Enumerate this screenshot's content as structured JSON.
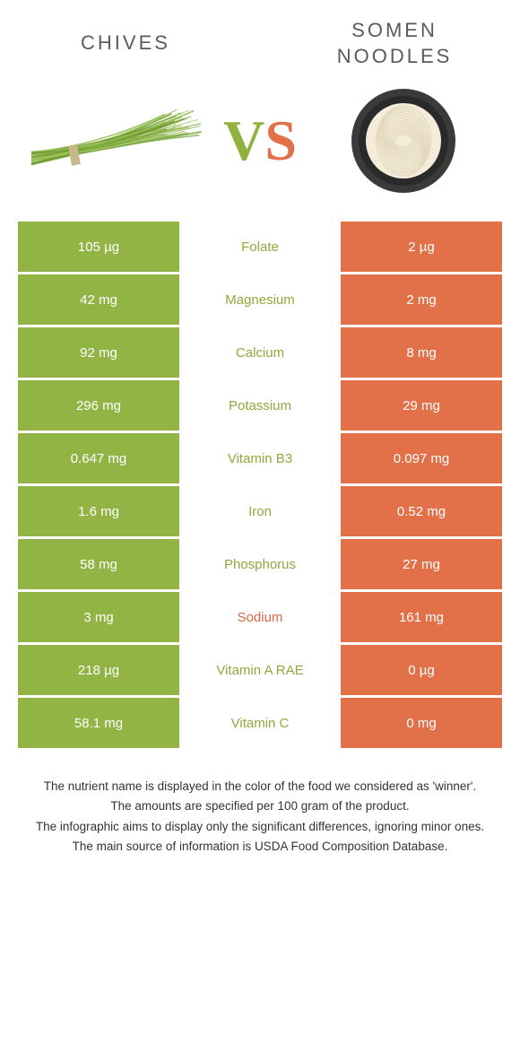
{
  "header": {
    "left_title": "Chives",
    "right_title": "Somen noodles",
    "vs_v": "V",
    "vs_s": "S"
  },
  "colors": {
    "left": "#91b445",
    "right": "#e2714a",
    "nutrient_left": "#8fa83e",
    "nutrient_right": "#d66842",
    "white": "#ffffff"
  },
  "images": {
    "chives": {
      "stroke": "#6d9a2f",
      "stroke_light": "#9ac158",
      "band": "#c9b98a"
    },
    "noodles": {
      "bowl_outer": "#3a3a3a",
      "bowl_inner": "#2a2a2a",
      "noodle": "#f4ecd8",
      "noodle_shadow": "#d8ceb0"
    }
  },
  "rows": [
    {
      "left": "105 µg",
      "nutrient": "Folate",
      "right": "2 µg",
      "winner": "left"
    },
    {
      "left": "42 mg",
      "nutrient": "Magnesium",
      "right": "2 mg",
      "winner": "left"
    },
    {
      "left": "92 mg",
      "nutrient": "Calcium",
      "right": "8 mg",
      "winner": "left"
    },
    {
      "left": "296 mg",
      "nutrient": "Potassium",
      "right": "29 mg",
      "winner": "left"
    },
    {
      "left": "0.647 mg",
      "nutrient": "Vitamin B3",
      "right": "0.097 mg",
      "winner": "left"
    },
    {
      "left": "1.6 mg",
      "nutrient": "Iron",
      "right": "0.52 mg",
      "winner": "left"
    },
    {
      "left": "58 mg",
      "nutrient": "Phosphorus",
      "right": "27 mg",
      "winner": "left"
    },
    {
      "left": "3 mg",
      "nutrient": "Sodium",
      "right": "161 mg",
      "winner": "right"
    },
    {
      "left": "218 µg",
      "nutrient": "Vitamin A RAE",
      "right": "0 µg",
      "winner": "left"
    },
    {
      "left": "58.1 mg",
      "nutrient": "Vitamin C",
      "right": "0 mg",
      "winner": "left"
    }
  ],
  "footer": {
    "line1": "The nutrient name is displayed in the color of the food we considered as 'winner'.",
    "line2": "The amounts are specified per 100 gram of the product.",
    "line3": "The infographic aims to display only the significant differences, ignoring minor ones.",
    "line4": "The main source of information is USDA Food Composition Database."
  }
}
